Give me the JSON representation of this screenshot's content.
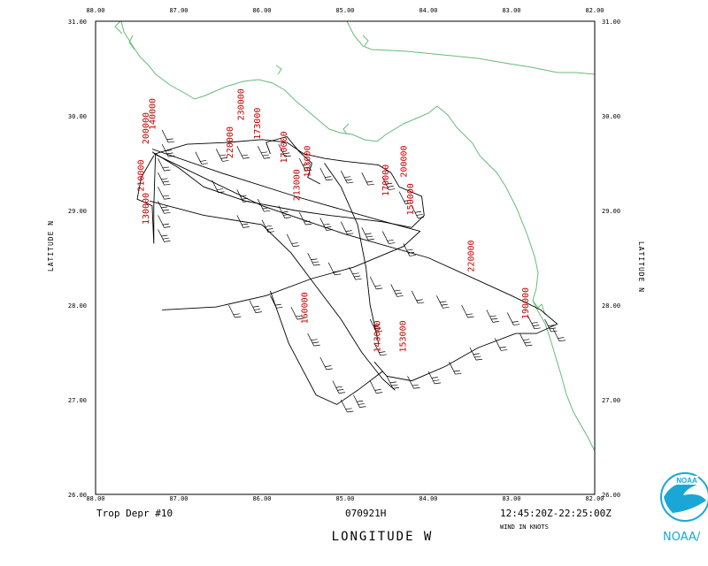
{
  "map": {
    "lon_ticks": [
      "88.00",
      "87.00",
      "86.00",
      "85.00",
      "84.00",
      "83.00",
      "82.00"
    ],
    "lat_ticks": [
      "26.00",
      "27.00",
      "28.00",
      "29.00",
      "30.00",
      "31.00"
    ],
    "x_axis_title": "LONGITUDE  W",
    "y_axis_title": "LATITUDE  N"
  },
  "footer": {
    "storm": "Trop Depr #10",
    "mission": "070921H",
    "time_range": "12:45:20Z-22:25:00Z",
    "wind_units": "WIND IN KNOTS"
  },
  "logo": {
    "text": "NOAA/",
    "badge": "NOAA"
  },
  "colors": {
    "coast": "#66bb77",
    "track": "#000000",
    "labels": "#c00000",
    "logo": "#1aa7d6"
  },
  "time_labels": [
    {
      "text": "140000",
      "lon": 87.28,
      "lat": 29.85
    },
    {
      "text": "200000",
      "lon": 87.36,
      "lat": 29.7
    },
    {
      "text": "210000",
      "lon": 87.42,
      "lat": 29.2
    },
    {
      "text": "130000",
      "lon": 87.36,
      "lat": 28.85
    },
    {
      "text": "230000",
      "lon": 86.22,
      "lat": 29.95
    },
    {
      "text": "173000",
      "lon": 86.02,
      "lat": 29.75
    },
    {
      "text": "220000",
      "lon": 86.35,
      "lat": 29.55
    },
    {
      "text": "170000",
      "lon": 85.7,
      "lat": 29.5
    },
    {
      "text": "213000",
      "lon": 85.55,
      "lat": 29.1
    },
    {
      "text": "193000",
      "lon": 85.42,
      "lat": 29.35
    },
    {
      "text": "170000",
      "lon": 84.48,
      "lat": 29.15
    },
    {
      "text": "200000",
      "lon": 84.26,
      "lat": 29.35
    },
    {
      "text": "150000",
      "lon": 84.18,
      "lat": 28.95
    },
    {
      "text": "220000",
      "lon": 83.45,
      "lat": 28.35
    },
    {
      "text": "160000",
      "lon": 85.45,
      "lat": 27.8
    },
    {
      "text": "143000",
      "lon": 84.58,
      "lat": 27.5
    },
    {
      "text": "153000",
      "lon": 84.27,
      "lat": 27.5
    },
    {
      "text": "190000",
      "lon": 82.8,
      "lat": 27.85
    }
  ],
  "flight_track": [
    [
      87.3,
      29.58
    ],
    [
      87.45,
      29.35
    ],
    [
      87.5,
      29.12
    ],
    [
      87.32,
      29.05
    ],
    [
      87.3,
      28.65
    ],
    [
      87.3,
      29.05
    ],
    [
      87.28,
      29.6
    ],
    [
      86.9,
      29.7
    ],
    [
      86.4,
      29.72
    ],
    [
      86.0,
      29.75
    ],
    [
      85.7,
      29.72
    ],
    [
      85.5,
      29.6
    ],
    [
      85.25,
      29.55
    ],
    [
      85.0,
      29.52
    ],
    [
      84.6,
      29.48
    ],
    [
      84.45,
      29.4
    ],
    [
      84.35,
      29.25
    ],
    [
      84.08,
      29.15
    ],
    [
      84.05,
      28.95
    ],
    [
      84.2,
      28.82
    ],
    [
      84.55,
      28.88
    ],
    [
      85.2,
      28.95
    ],
    [
      85.6,
      29.0
    ],
    [
      86.2,
      29.1
    ],
    [
      86.7,
      29.25
    ],
    [
      87.0,
      29.45
    ],
    [
      87.32,
      29.62
    ]
  ],
  "flight_track_2": [
    [
      87.32,
      29.65
    ],
    [
      86.5,
      29.4
    ],
    [
      85.6,
      29.15
    ],
    [
      84.6,
      28.9
    ],
    [
      84.1,
      28.78
    ],
    [
      84.3,
      28.62
    ],
    [
      84.9,
      28.4
    ],
    [
      85.4,
      28.28
    ],
    [
      85.95,
      28.1
    ],
    [
      86.55,
      27.98
    ],
    [
      87.2,
      27.95
    ]
  ],
  "flight_track_3": [
    [
      87.3,
      29.6
    ],
    [
      86.0,
      29.05
    ],
    [
      85.0,
      28.75
    ],
    [
      84.0,
      28.5
    ],
    [
      83.0,
      28.1
    ],
    [
      82.65,
      27.95
    ],
    [
      82.45,
      27.8
    ],
    [
      82.7,
      27.7
    ],
    [
      82.95,
      27.7
    ],
    [
      83.4,
      27.55
    ],
    [
      83.8,
      27.35
    ],
    [
      84.2,
      27.2
    ],
    [
      84.5,
      27.25
    ],
    [
      84.65,
      27.4
    ],
    [
      84.55,
      27.3
    ],
    [
      84.85,
      27.1
    ],
    [
      85.1,
      26.95
    ],
    [
      85.35,
      27.05
    ],
    [
      85.5,
      27.3
    ],
    [
      85.68,
      27.6
    ],
    [
      85.9,
      28.15
    ]
  ],
  "flight_track_4": [
    [
      87.35,
      29.1
    ],
    [
      86.7,
      28.95
    ],
    [
      86.0,
      28.85
    ],
    [
      85.65,
      28.55
    ],
    [
      85.35,
      28.2
    ],
    [
      85.05,
      27.85
    ],
    [
      84.8,
      27.5
    ],
    [
      84.55,
      27.22
    ],
    [
      84.4,
      27.1
    ]
  ],
  "flight_track_5": [
    [
      85.25,
      29.5
    ],
    [
      85.05,
      29.25
    ],
    [
      84.85,
      28.85
    ],
    [
      84.75,
      28.4
    ],
    [
      84.7,
      28.0
    ],
    [
      84.6,
      27.6
    ]
  ],
  "flight_track_6": [
    [
      85.9,
      29.6
    ],
    [
      85.95,
      29.72
    ],
    [
      85.7,
      29.78
    ],
    [
      85.55,
      29.62
    ],
    [
      85.4,
      29.5
    ],
    [
      85.45,
      29.35
    ],
    [
      85.3,
      29.28
    ]
  ],
  "wind_barbs": [
    [
      87.2,
      29.85
    ],
    [
      87.2,
      29.7
    ],
    [
      87.25,
      29.55
    ],
    [
      87.25,
      29.4
    ],
    [
      87.25,
      29.25
    ],
    [
      87.25,
      29.1
    ],
    [
      87.25,
      28.95
    ],
    [
      87.25,
      28.8
    ],
    [
      86.8,
      29.62
    ],
    [
      86.55,
      29.65
    ],
    [
      86.3,
      29.68
    ],
    [
      86.05,
      29.68
    ],
    [
      85.8,
      29.7
    ],
    [
      85.55,
      29.55
    ],
    [
      85.3,
      29.45
    ],
    [
      85.05,
      29.42
    ],
    [
      84.8,
      29.4
    ],
    [
      84.55,
      29.35
    ],
    [
      84.35,
      29.2
    ],
    [
      84.2,
      29.05
    ],
    [
      86.6,
      29.32
    ],
    [
      86.3,
      29.22
    ],
    [
      86.05,
      29.12
    ],
    [
      85.8,
      29.05
    ],
    [
      85.55,
      28.98
    ],
    [
      85.3,
      28.92
    ],
    [
      85.05,
      28.88
    ],
    [
      84.8,
      28.82
    ],
    [
      84.55,
      28.78
    ],
    [
      84.3,
      28.65
    ],
    [
      86.3,
      28.95
    ],
    [
      86.0,
      28.9
    ],
    [
      85.7,
      28.75
    ],
    [
      85.45,
      28.55
    ],
    [
      85.2,
      28.45
    ],
    [
      84.95,
      28.4
    ],
    [
      84.7,
      28.3
    ],
    [
      84.45,
      28.22
    ],
    [
      84.2,
      28.15
    ],
    [
      83.9,
      28.1
    ],
    [
      83.6,
      28.0
    ],
    [
      83.3,
      27.95
    ],
    [
      83.05,
      27.92
    ],
    [
      82.8,
      27.88
    ],
    [
      85.65,
      27.98
    ],
    [
      85.45,
      27.7
    ],
    [
      85.3,
      27.45
    ],
    [
      85.15,
      27.2
    ],
    [
      85.05,
      27.0
    ],
    [
      84.9,
      27.05
    ],
    [
      84.7,
      27.2
    ],
    [
      84.5,
      27.25
    ],
    [
      84.25,
      27.25
    ],
    [
      84.0,
      27.3
    ],
    [
      83.75,
      27.4
    ],
    [
      83.5,
      27.55
    ],
    [
      83.2,
      27.65
    ],
    [
      82.9,
      27.7
    ],
    [
      86.4,
      28.0
    ],
    [
      86.15,
      28.05
    ],
    [
      85.9,
      28.1
    ],
    [
      84.7,
      27.85
    ],
    [
      84.65,
      27.6
    ],
    [
      82.6,
      27.85
    ],
    [
      82.5,
      27.75
    ]
  ]
}
